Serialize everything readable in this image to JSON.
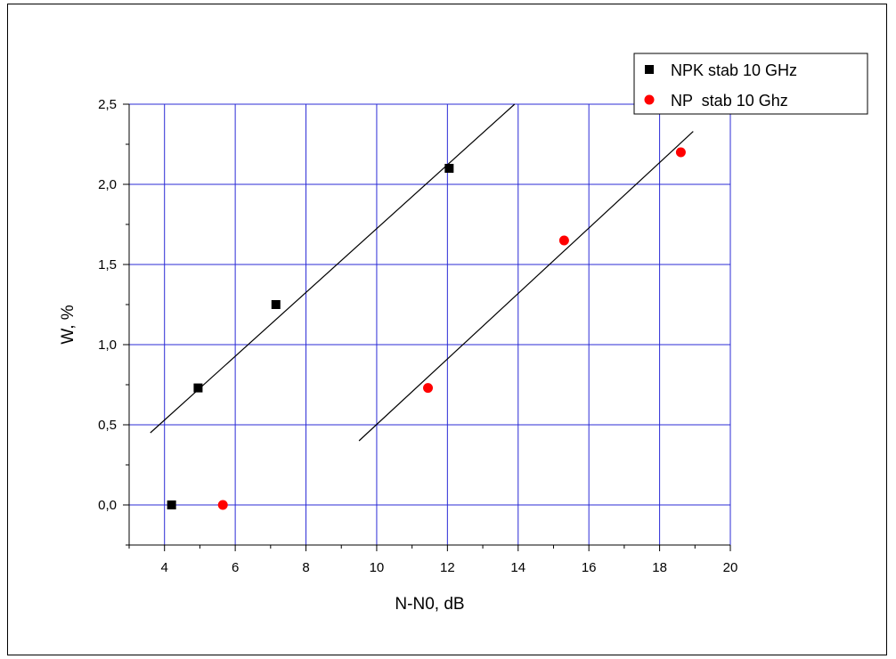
{
  "chart_data": {
    "type": "scatter",
    "xlabel": "N-N0, dB",
    "ylabel": "W, %",
    "xlim": [
      3,
      20
    ],
    "ylim": [
      -0.25,
      2.5
    ],
    "x_ticks": [
      4,
      6,
      8,
      10,
      12,
      14,
      16,
      18,
      20
    ],
    "x_tick_labels": [
      "4",
      "6",
      "8",
      "10",
      "12",
      "14",
      "16",
      "18",
      "20"
    ],
    "y_ticks": [
      0.0,
      0.5,
      1.0,
      1.5,
      2.0,
      2.5
    ],
    "y_tick_labels": [
      "0,0",
      "0,5",
      "1,0",
      "1,5",
      "2,0",
      "2,5"
    ],
    "grid": true,
    "grid_color": "#2b2bd6",
    "legend_position": "top-right",
    "series": [
      {
        "name": "NPK stab 10 GHz",
        "marker": "square",
        "color": "#000000",
        "points": [
          [
            4.2,
            0.0
          ],
          [
            4.95,
            0.73
          ],
          [
            7.15,
            1.25
          ],
          [
            12.05,
            2.1
          ]
        ],
        "fit": {
          "x": [
            3.6,
            13.9
          ],
          "y": [
            0.45,
            2.5
          ],
          "color": "#000000"
        }
      },
      {
        "name": "NP  stab 10 Ghz",
        "marker": "circle",
        "color": "#ff0000",
        "points": [
          [
            5.65,
            0.0
          ],
          [
            11.45,
            0.73
          ],
          [
            15.3,
            1.65
          ],
          [
            18.6,
            2.2
          ]
        ],
        "fit": {
          "x": [
            9.5,
            18.95
          ],
          "y": [
            0.4,
            2.33
          ],
          "color": "#000000"
        }
      }
    ]
  }
}
